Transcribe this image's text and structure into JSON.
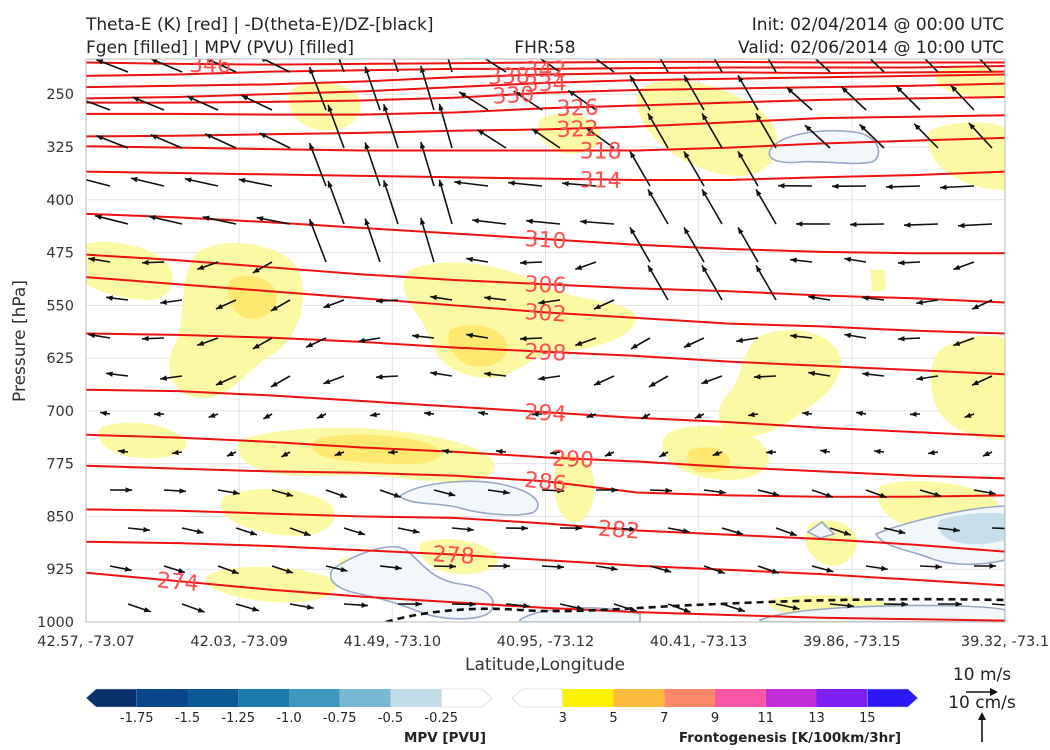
{
  "header": {
    "title_line1": "Theta-E (K) [red] | -D(theta-E)/DZ-[black]",
    "title_line2": "Fgen [filled] | MPV (PVU) [filled]",
    "fhr": "FHR:58",
    "init": "Init: 02/04/2014 @ 00:00 UTC",
    "valid": "Valid: 02/06/2014 @ 10:00 UTC"
  },
  "chart_data": {
    "type": "cross-section",
    "xlabel": "Latitude,Longitude",
    "ylabel": "Pressure [hPa]",
    "x_ticks": [
      "42.57, -73.07",
      "42.03, -73.09",
      "41.49, -73.10",
      "40.95, -73.12",
      "40.41, -73.13",
      "39.86, -73.15",
      "39.32, -73.1"
    ],
    "y_ticks": [
      "250",
      "325",
      "400",
      "475",
      "550",
      "625",
      "700",
      "775",
      "850",
      "925",
      "1000"
    ],
    "y_values": [
      250,
      325,
      400,
      475,
      550,
      625,
      700,
      775,
      850,
      925,
      1000
    ],
    "ylim": [
      1000,
      200
    ],
    "theta_e_contours": [
      {
        "label": "346",
        "p": [
          205,
          207,
          208,
          207,
          206,
          205,
          204,
          204,
          205,
          205,
          205
        ],
        "labx": 0.135
      },
      {
        "label": "342",
        "p": [
          224,
          222,
          218,
          216,
          214,
          214,
          213,
          212,
          212,
          212,
          210
        ],
        "labx": 0.5
      },
      {
        "label": "338",
        "p": [
          240,
          238,
          236,
          232,
          226,
          222,
          220,
          219,
          220,
          219,
          218
        ],
        "labx": 0.46
      },
      {
        "label": "334",
        "p": [
          256,
          254,
          250,
          246,
          240,
          234,
          230,
          228,
          226,
          224,
          222
        ],
        "labx": 0.5
      },
      {
        "label": "330",
        "p": [
          262,
          262,
          261,
          259,
          255,
          248,
          244,
          242,
          240,
          238,
          235
        ],
        "labx": 0.465
      },
      {
        "label": "326",
        "p": [
          278,
          278,
          279,
          279,
          276,
          270,
          266,
          262,
          258,
          256,
          254
        ],
        "labx": 0.535
      },
      {
        "label": "322",
        "p": [
          310,
          309,
          307,
          305,
          302,
          300,
          296,
          290,
          284,
          282,
          280
        ],
        "labx": 0.535
      },
      {
        "label": "318",
        "p": [
          324,
          326,
          328,
          330,
          330,
          330,
          330,
          326,
          320,
          316,
          312
        ],
        "labx": 0.56
      },
      {
        "label": "314",
        "p": [
          360,
          362,
          364,
          366,
          368,
          370,
          372,
          372,
          368,
          365,
          360
        ],
        "labx": 0.56
      },
      {
        "label": "310",
        "p": [
          420,
          425,
          432,
          440,
          448,
          456,
          464,
          470,
          474,
          476,
          476
        ],
        "labx": 0.5
      },
      {
        "label": "306",
        "p": [
          478,
          486,
          496,
          506,
          514,
          520,
          526,
          530,
          536,
          540,
          546
        ],
        "labx": 0.5
      },
      {
        "label": "302",
        "p": [
          510,
          520,
          530,
          540,
          550,
          560,
          568,
          576,
          580,
          586,
          590
        ],
        "labx": 0.5
      },
      {
        "label": "298",
        "p": [
          590,
          592,
          596,
          602,
          610,
          616,
          622,
          630,
          636,
          642,
          648
        ],
        "labx": 0.5
      },
      {
        "label": "294",
        "p": [
          670,
          672,
          678,
          686,
          694,
          702,
          710,
          716,
          724,
          730,
          736
        ],
        "labx": 0.5
      },
      {
        "label": "290",
        "p": [
          734,
          738,
          744,
          752,
          758,
          766,
          772,
          780,
          786,
          792,
          796
        ],
        "labx": 0.53
      },
      {
        "label": "286",
        "p": [
          778,
          782,
          786,
          788,
          792,
          800,
          816,
          820,
          822,
          822,
          820
        ],
        "labx": 0.5
      },
      {
        "label": "282",
        "p": [
          840,
          842,
          846,
          850,
          852,
          860,
          870,
          876,
          882,
          890,
          900
        ],
        "labx": 0.58
      },
      {
        "label": "278",
        "p": [
          886,
          888,
          892,
          898,
          904,
          912,
          920,
          926,
          932,
          940,
          948
        ],
        "labx": 0.4
      },
      {
        "label": "274",
        "p": [
          930,
          942,
          954,
          964,
          972,
          980,
          986,
          990,
          994,
          996,
          998
        ],
        "labx": 0.1
      }
    ],
    "mpv_colorbar": {
      "label": "MPV [PVU]",
      "ticks": [
        "-1.75",
        "-1.5",
        "-1.25",
        "-1.0",
        "-0.75",
        "-0.5",
        "-0.25"
      ],
      "colors": [
        "#08306b",
        "#08458a",
        "#0b5a94",
        "#1a7aa8",
        "#3f98c0",
        "#79b8d3",
        "#c2dce8",
        "#ffffff"
      ]
    },
    "fgen_colorbar": {
      "label": "Frontogenesis [K/100km/3hr]",
      "ticks": [
        "3",
        "5",
        "7",
        "9",
        "11",
        "13",
        "15"
      ],
      "colors": [
        "#ffffff",
        "#fbf100",
        "#fcbb3e",
        "#fc8a6a",
        "#fb56a5",
        "#c42ed8",
        "#7d1ff2",
        "#2c18f4"
      ]
    },
    "vector_reference": {
      "horizontal": "10 m/s",
      "vertical": "10 cm/s"
    },
    "grid": true
  }
}
